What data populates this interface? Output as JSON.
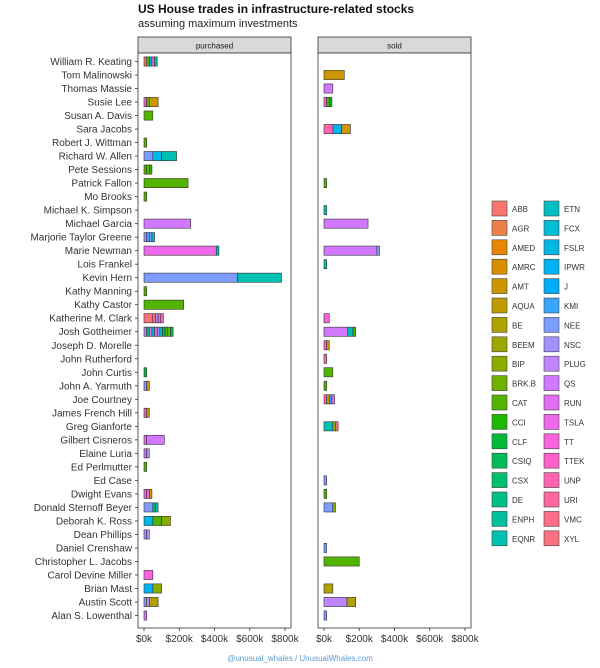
{
  "title": "US House trades in infrastructure-related stocks",
  "subtitle": "assuming maximum investments",
  "credit": "@unusual_whales / UnusualWhales.com",
  "chart_data": {
    "type": "bar",
    "orientation": "horizontal",
    "stacked": true,
    "facets": [
      "purchased",
      "sold"
    ],
    "xlim": [
      0,
      800000
    ],
    "x_ticks": [
      0,
      200000,
      400000,
      600000,
      800000
    ],
    "x_tick_labels": [
      "$0k",
      "$200k",
      "$400k",
      "$600k",
      "$800k"
    ],
    "legend_position": "right",
    "legend_title": "",
    "grid": false,
    "tickers": [
      "ABB",
      "AGR",
      "AMED",
      "AMRC",
      "AMT",
      "AQUA",
      "BE",
      "BEEM",
      "BIP",
      "BRK.B",
      "CAT",
      "CCI",
      "CLF",
      "CSIQ",
      "CSX",
      "DE",
      "ENPH",
      "EQNR",
      "ETN",
      "FCX",
      "FSLR",
      "IPWR",
      "J",
      "KMI",
      "NEE",
      "NSC",
      "PLUG",
      "QS",
      "RUN",
      "TSLA",
      "TT",
      "TTEK",
      "UNP",
      "URI",
      "VMC",
      "XYL"
    ],
    "colors": {
      "ABB": "#F8766D",
      "AGR": "#EF7F49",
      "AMED": "#E58700",
      "AMRC": "#D98E00",
      "AMT": "#CC9600",
      "AQUA": "#BE9C00",
      "BE": "#AFA100",
      "BEEM": "#9DA700",
      "BIP": "#8AAB00",
      "BRK.B": "#72B000",
      "CAT": "#53B400",
      "CCI": "#1EB800",
      "CLF": "#00BA38",
      "CSIQ": "#00BD58",
      "CSX": "#00BF71",
      "DE": "#00C087",
      "ENPH": "#00C19C",
      "EQNR": "#00C0AF",
      "ETN": "#00BFC2",
      "FCX": "#00BCD5",
      "FSLR": "#00B8E5",
      "IPWR": "#00B3F4",
      "J": "#00ACFC",
      "KMI": "#39A5FF",
      "NEE": "#7C9DFF",
      "NSC": "#A292FF",
      "PLUG": "#BF86FF",
      "QS": "#D277FF",
      "RUN": "#E36EF6",
      "TSLA": "#EF67EB",
      "TT": "#F963DD",
      "TTEK": "#FF61C9",
      "UNP": "#FF64B3",
      "URI": "#FF689E",
      "VMC": "#FF6D89",
      "XYL": "#FC717F"
    },
    "members": [
      "William R. Keating",
      "Tom Malinowski",
      "Thomas Massie",
      "Susie Lee",
      "Susan A. Davis",
      "Sara Jacobs",
      "Robert J. Wittman",
      "Richard W. Allen",
      "Pete Sessions",
      "Patrick Fallon",
      "Mo Brooks",
      "Michael K. Simpson",
      "Michael Garcia",
      "Marjorie Taylor Greene",
      "Marie Newman",
      "Lois Frankel",
      "Kevin Hern",
      "Kathy Manning",
      "Kathy Castor",
      "Katherine M. Clark",
      "Josh Gottheimer",
      "Joseph D. Morelle",
      "John Rutherford",
      "John Curtis",
      "John A. Yarmuth",
      "Joe Courtney",
      "James French Hill",
      "Greg Gianforte",
      "Gilbert Cisneros",
      "Elaine Luria",
      "Ed Perlmutter",
      "Ed Case",
      "Dwight Evans",
      "Donald Sternoff Beyer",
      "Deborah K. Ross",
      "Dean Phillips",
      "Daniel Crenshaw",
      "Christopher L. Jacobs",
      "Carol Devine Miller",
      "Brian Mast",
      "Austin Scott",
      "Alan S. Lowenthal"
    ],
    "purchased": {
      "William R. Keating": [
        [
          "ABB",
          15000
        ],
        [
          "CAT",
          15000
        ],
        [
          "FSLR",
          15000
        ],
        [
          "TSLA",
          15000
        ],
        [
          "ENPH",
          15000
        ]
      ],
      "Susie Lee": [
        [
          "TTEK",
          15000
        ],
        [
          "CAT",
          15000
        ],
        [
          "AMT",
          50000
        ]
      ],
      "Susan A. Davis": [
        [
          "CAT",
          50000
        ]
      ],
      "Robert J. Wittman": [
        [
          "CAT",
          15000
        ]
      ],
      "Richard W. Allen": [
        [
          "NEE",
          50000
        ],
        [
          "FSLR",
          50000
        ],
        [
          "EQNR",
          85000
        ]
      ],
      "Pete Sessions": [
        [
          "CAT",
          15000
        ],
        [
          "BRK.B",
          15000
        ],
        [
          "CCI",
          15000
        ]
      ],
      "Patrick Fallon": [
        [
          "CAT",
          250000
        ]
      ],
      "Mo Brooks": [
        [
          "CAT",
          15000
        ]
      ],
      "Michael Garcia": [
        [
          "QS",
          265000
        ]
      ],
      "Marjorie Taylor Greene": [
        [
          "NSC",
          15000
        ],
        [
          "KMI",
          15000
        ],
        [
          "NEE",
          15000
        ],
        [
          "ETN",
          15000
        ]
      ],
      "Marie Newman": [
        [
          "TSLA",
          410000
        ],
        [
          "EQNR",
          15000
        ]
      ],
      "Kevin Hern": [
        [
          "NEE",
          530000
        ],
        [
          "EQNR",
          250000
        ]
      ],
      "Kathy Manning": [
        [
          "CAT",
          15000
        ]
      ],
      "Kathy Castor": [
        [
          "CAT",
          225000
        ]
      ],
      "Katherine M. Clark": [
        [
          "XYL",
          50000
        ],
        [
          "ABB",
          15000
        ],
        [
          "NSC",
          15000
        ],
        [
          "TSLA",
          15000
        ],
        [
          "UNP",
          15000
        ]
      ],
      "Josh Gottheimer": [
        [
          "PLUG",
          15000
        ],
        [
          "CSX",
          15000
        ],
        [
          "QS",
          15000
        ],
        [
          "FSLR",
          15000
        ],
        [
          "TT",
          15000
        ],
        [
          "NEE",
          15000
        ],
        [
          "ETN",
          15000
        ],
        [
          "CSIQ",
          15000
        ],
        [
          "CAT",
          15000
        ],
        [
          "BRK.B",
          15000
        ],
        [
          "CLF",
          15000
        ]
      ],
      "John Curtis": [
        [
          "CLF",
          15000
        ]
      ],
      "John A. Yarmuth": [
        [
          "NEE",
          15000
        ],
        [
          "AMED",
          15000
        ]
      ],
      "James French Hill": [
        [
          "UNP",
          15000
        ],
        [
          "BE",
          15000
        ]
      ],
      "Gilbert Cisneros": [
        [
          "RUN",
          15000
        ],
        [
          "QS",
          100000
        ]
      ],
      "Elaine Luria": [
        [
          "QS",
          15000
        ],
        [
          "NSC",
          15000
        ]
      ],
      "Ed Perlmutter": [
        [
          "CAT",
          15000
        ]
      ],
      "Dwight Evans": [
        [
          "TSLA",
          15000
        ],
        [
          "TTEK",
          15000
        ],
        [
          "AMT",
          15000
        ]
      ],
      "Donald Sternoff Beyer": [
        [
          "NEE",
          50000
        ],
        [
          "CSIQ",
          15000
        ],
        [
          "ETN",
          15000
        ]
      ],
      "Deborah K. Ross": [
        [
          "FSLR",
          50000
        ],
        [
          "CAT",
          50000
        ],
        [
          "BIP",
          50000
        ]
      ],
      "Dean Phillips": [
        [
          "NSC",
          15000
        ],
        [
          "PLUG",
          15000
        ]
      ],
      "Carol Devine Miller": [
        [
          "TT",
          50000
        ]
      ],
      "Brian Mast": [
        [
          "IPWR",
          50000
        ],
        [
          "BIP",
          50000
        ]
      ],
      "Austin Scott": [
        [
          "NEE",
          15000
        ],
        [
          "PLUG",
          15000
        ],
        [
          "BE",
          50000
        ]
      ],
      "Alan S. Lowenthal": [
        [
          "QS",
          15000
        ]
      ]
    },
    "sold": {
      "Tom Malinowski": [
        [
          "AMT",
          115000
        ]
      ],
      "Thomas Massie": [
        [
          "QS",
          50000
        ]
      ],
      "Susie Lee": [
        [
          "TTEK",
          15000
        ],
        [
          "CAT",
          15000
        ],
        [
          "CLF",
          15000
        ]
      ],
      "Sara Jacobs": [
        [
          "UNP",
          50000
        ],
        [
          "IPWR",
          50000
        ],
        [
          "AMT",
          50000
        ]
      ],
      "Patrick Fallon": [
        [
          "CAT",
          15000
        ]
      ],
      "Michael K. Simpson": [
        [
          "EQNR",
          15000
        ]
      ],
      "Michael Garcia": [
        [
          "QS",
          250000
        ]
      ],
      "Marie Newman": [
        [
          "QS",
          300000
        ],
        [
          "NEE",
          15000
        ]
      ],
      "Lois Frankel": [
        [
          "EQNR",
          15000
        ]
      ],
      "Katherine M. Clark": [
        [
          "TT",
          30000
        ]
      ],
      "Josh Gottheimer": [
        [
          "QS",
          135000
        ],
        [
          "EQNR",
          30000
        ],
        [
          "CAT",
          15000
        ]
      ],
      "Joseph D. Morelle": [
        [
          "TTEK",
          15000
        ],
        [
          "AMT",
          15000
        ]
      ],
      "John Rutherford": [
        [
          "URI",
          15000
        ]
      ],
      "John Curtis": [
        [
          "CAT",
          50000
        ]
      ],
      "John A. Yarmuth": [
        [
          "CAT",
          15000
        ]
      ],
      "Joe Courtney": [
        [
          "UNP",
          15000
        ],
        [
          "AMT",
          15000
        ],
        [
          "KMI",
          15000
        ],
        [
          "RUN",
          15000
        ]
      ],
      "Greg Gianforte": [
        [
          "EQNR",
          50000
        ],
        [
          "BE",
          15000
        ],
        [
          "ABB",
          15000
        ]
      ],
      "Ed Case": [
        [
          "NEE",
          15000
        ]
      ],
      "Dwight Evans": [
        [
          "CAT",
          15000
        ]
      ],
      "Donald Sternoff Beyer": [
        [
          "NEE",
          50000
        ],
        [
          "BIP",
          15000
        ]
      ],
      "Daniel Crenshaw": [
        [
          "NEE",
          15000
        ]
      ],
      "Christopher L. Jacobs": [
        [
          "CAT",
          200000
        ]
      ],
      "Brian Mast": [
        [
          "BE",
          50000
        ]
      ],
      "Austin Scott": [
        [
          "PLUG",
          130000
        ],
        [
          "BE",
          50000
        ]
      ],
      "Alan S. Lowenthal": [
        [
          "NEE",
          15000
        ]
      ]
    }
  }
}
